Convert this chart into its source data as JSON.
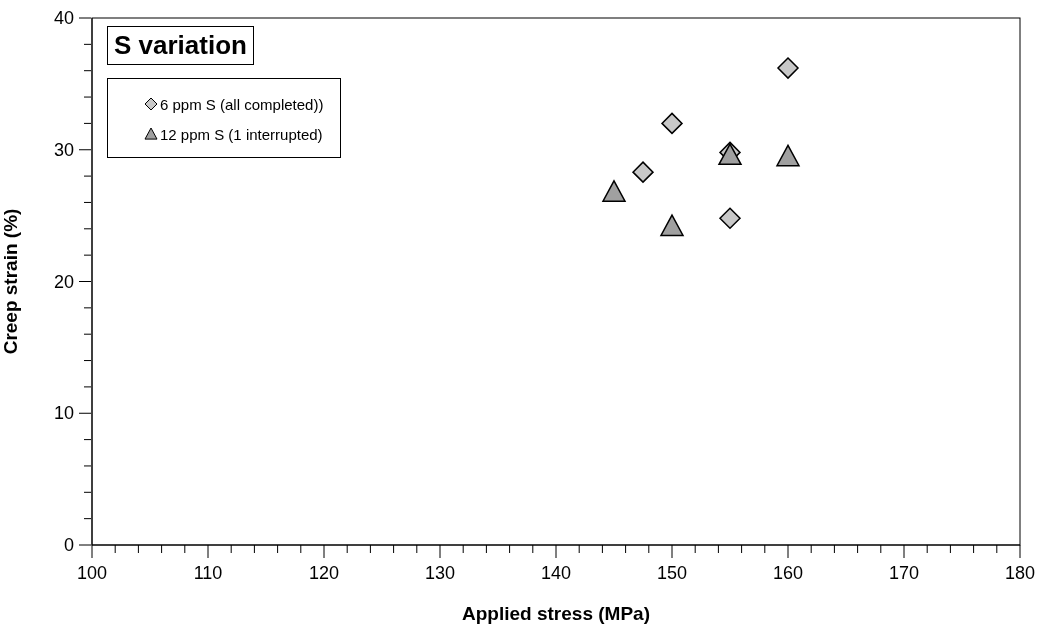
{
  "chart_data": {
    "type": "scatter",
    "title": "S variation",
    "xlabel": "Applied stress (MPa)",
    "ylabel": "Creep strain (%)",
    "xlim": [
      100,
      180
    ],
    "ylim": [
      0,
      40
    ],
    "xticks": [
      100,
      {
        "value": 102,
        "label": null
      },
      {
        "value": 104,
        "label": null
      },
      {
        "value": 106,
        "label": null
      },
      {
        "value": 108,
        "label": null
      },
      110,
      {
        "value": 112,
        "label": null
      },
      {
        "value": 114,
        "label": null
      },
      {
        "value": 116,
        "label": null
      },
      {
        "value": 118,
        "label": null
      },
      120,
      {
        "value": 122,
        "label": null
      },
      {
        "value": 124,
        "label": null
      },
      {
        "value": 126,
        "label": null
      },
      {
        "value": 128,
        "label": null
      },
      130,
      {
        "value": 132,
        "label": null
      },
      {
        "value": 134,
        "label": null
      },
      {
        "value": 136,
        "label": null
      },
      {
        "value": 138,
        "label": null
      },
      140,
      {
        "value": 142,
        "label": null
      },
      {
        "value": 144,
        "label": null
      },
      {
        "value": 146,
        "label": null
      },
      {
        "value": 148,
        "label": null
      },
      150,
      {
        "value": 152,
        "label": null
      },
      {
        "value": 154,
        "label": null
      },
      {
        "value": 156,
        "label": null
      },
      {
        "value": 158,
        "label": null
      },
      160,
      {
        "value": 162,
        "label": null
      },
      {
        "value": 164,
        "label": null
      },
      {
        "value": 166,
        "label": null
      },
      {
        "value": 168,
        "label": null
      },
      170,
      {
        "value": 172,
        "label": null
      },
      {
        "value": 174,
        "label": null
      },
      {
        "value": 176,
        "label": null
      },
      {
        "value": 178,
        "label": null
      },
      180
    ],
    "yticks": [
      0,
      {
        "value": 2,
        "label": null
      },
      {
        "value": 4,
        "label": null
      },
      {
        "value": 6,
        "label": null
      },
      {
        "value": 8,
        "label": null
      },
      10,
      {
        "value": 12,
        "label": null
      },
      {
        "value": 14,
        "label": null
      },
      {
        "value": 16,
        "label": null
      },
      {
        "value": 18,
        "label": null
      },
      20,
      {
        "value": 22,
        "label": null
      },
      {
        "value": 24,
        "label": null
      },
      {
        "value": 26,
        "label": null
      },
      {
        "value": 28,
        "label": null
      },
      30,
      {
        "value": 32,
        "label": null
      },
      {
        "value": 34,
        "label": null
      },
      {
        "value": 36,
        "label": null
      },
      {
        "value": 38,
        "label": null
      },
      40
    ],
    "legend": "top left",
    "series": [
      {
        "name": "6 ppm S (all completed))",
        "color": "#c8c8c8",
        "marker": "diamond",
        "x": [
          147.5,
          150,
          155,
          155,
          160
        ],
        "values": [
          28.3,
          32,
          29.8,
          24.8,
          36.2
        ]
      },
      {
        "name": "12 ppm S (1 interrupted)",
        "color": "#a0a0a0",
        "marker": "triangle",
        "x": [
          145,
          150,
          155,
          160
        ],
        "values": [
          26.8,
          24.2,
          29.6,
          29.5
        ]
      }
    ]
  }
}
